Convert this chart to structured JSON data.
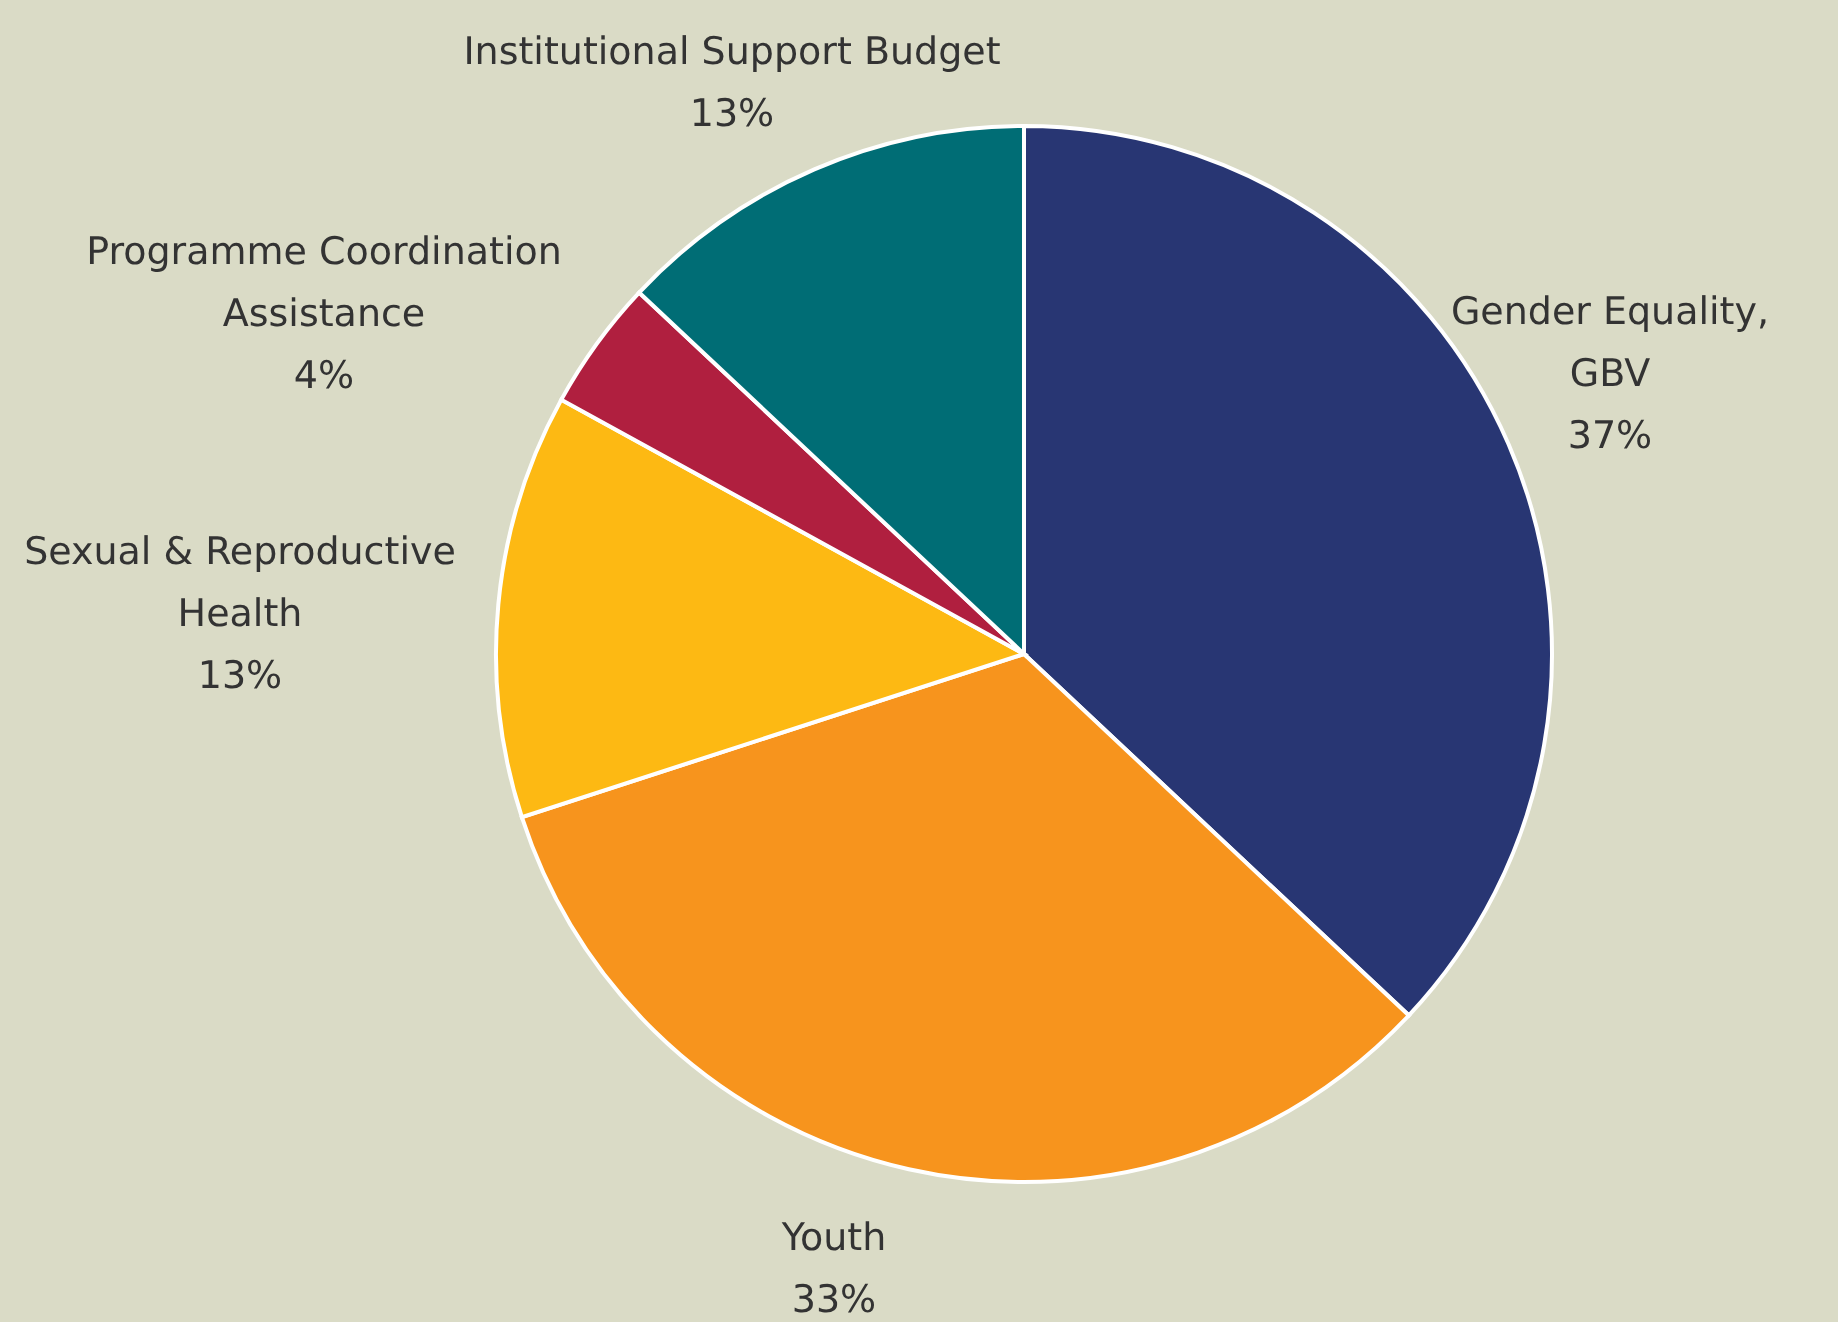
{
  "chart_data": {
    "type": "pie",
    "categories": [
      "Gender Equality, GBV",
      "Youth",
      "Sexual & Reproductive Health",
      "Programme Coordination Assistance",
      "Institutional Support Budget"
    ],
    "values": [
      37,
      33,
      13,
      4,
      13
    ],
    "value_labels": [
      "37%",
      "33%",
      "13%",
      "4%",
      "13%"
    ],
    "colors": [
      "#283673",
      "#f7941d",
      "#fdb913",
      "#b01f3f",
      "#006d75"
    ]
  }
}
